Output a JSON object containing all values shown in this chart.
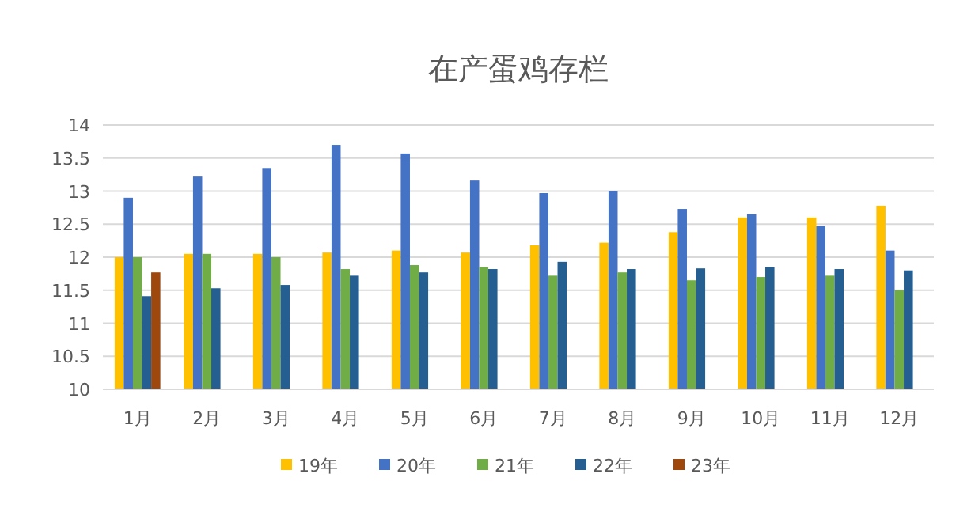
{
  "chart_data": {
    "type": "bar",
    "title": "在产蛋鸡存栏",
    "categories": [
      "1月",
      "2月",
      "3月",
      "4月",
      "5月",
      "6月",
      "7月",
      "8月",
      "9月",
      "10月",
      "11月",
      "12月"
    ],
    "series": [
      {
        "name": "19年",
        "color": "#ffc000",
        "values": [
          12.0,
          12.05,
          12.05,
          12.07,
          12.1,
          12.07,
          12.18,
          12.22,
          12.38,
          12.6,
          12.6,
          12.78
        ]
      },
      {
        "name": "20年",
        "color": "#4472c4",
        "values": [
          12.9,
          13.22,
          13.35,
          13.7,
          13.57,
          13.16,
          12.97,
          13.0,
          12.73,
          12.65,
          12.47,
          12.1
        ]
      },
      {
        "name": "21年",
        "color": "#70ad47",
        "values": [
          12.0,
          12.05,
          12.0,
          11.82,
          11.88,
          11.85,
          11.72,
          11.77,
          11.65,
          11.7,
          11.72,
          11.5
        ]
      },
      {
        "name": "22年",
        "color": "#255e91",
        "values": [
          11.41,
          11.53,
          11.58,
          11.72,
          11.77,
          11.82,
          11.93,
          11.82,
          11.83,
          11.85,
          11.82,
          11.8
        ]
      },
      {
        "name": "23年",
        "color": "#9e480e",
        "values": [
          11.77,
          null,
          null,
          null,
          null,
          null,
          null,
          null,
          null,
          null,
          null,
          null
        ]
      }
    ],
    "ylim": [
      10,
      14
    ],
    "yticks": [
      10,
      10.5,
      11,
      11.5,
      12,
      12.5,
      13,
      13.5,
      14
    ],
    "grid": "y",
    "legend": "bottom"
  }
}
